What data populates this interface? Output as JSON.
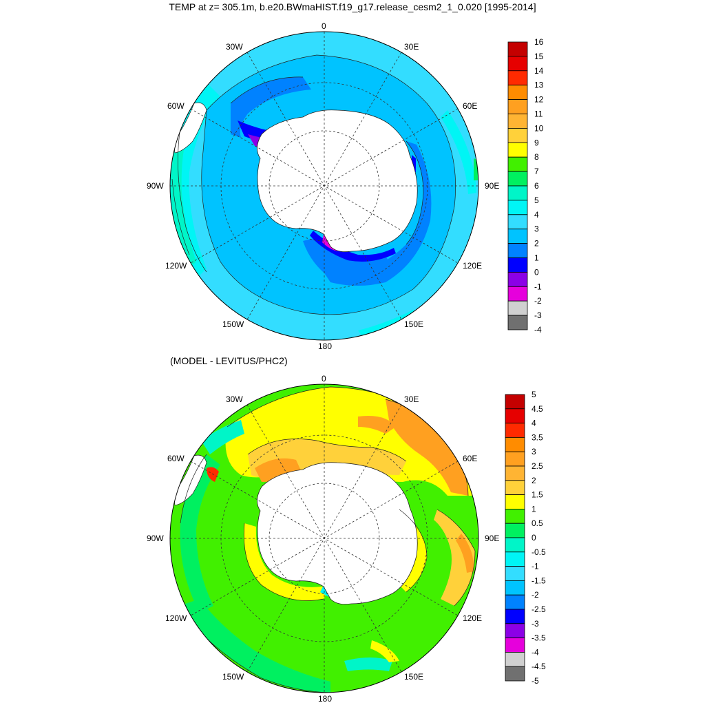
{
  "title": "TEMP at z= 305.1m, b.e20.BWmaHIST.f19_g17.release_cesm2_1_0.020 [1995-2014]",
  "bottom_title": "(MODEL - LEVITUS/PHC2)",
  "longitude_labels": [
    "0",
    "30E",
    "60E",
    "90E",
    "120E",
    "150E",
    "180",
    "150W",
    "120W",
    "90W",
    "60W",
    "30W"
  ],
  "top_colorbar": {
    "labels": [
      "16",
      "15",
      "14",
      "13",
      "12",
      "11",
      "10",
      "9",
      "8",
      "7",
      "6",
      "5",
      "4",
      "3",
      "2",
      "1",
      "0",
      "-1",
      "-2",
      "-3",
      "-4"
    ],
    "colors": [
      "#c40000",
      "#e60000",
      "#ff2a00",
      "#ff8c00",
      "#ffa020",
      "#ffb433",
      "#ffd13a",
      "#ffff00",
      "#41f000",
      "#00f060",
      "#00f5c8",
      "#00f5f5",
      "#33ddff",
      "#00c3ff",
      "#0082ff",
      "#0000ff",
      "#8b00e6",
      "#e600dc",
      "#d0d0d0",
      "#707070"
    ]
  },
  "bottom_colorbar": {
    "labels": [
      "5",
      "4.5",
      "4",
      "3.5",
      "3",
      "2.5",
      "2",
      "1.5",
      "1",
      "0.5",
      "0",
      "-0.5",
      "-1",
      "-1.5",
      "-2",
      "-2.5",
      "-3",
      "-3.5",
      "-4",
      "-4.5",
      "-5"
    ],
    "colors": [
      "#c40000",
      "#e60000",
      "#ff2a00",
      "#ff8c00",
      "#ffa020",
      "#ffb433",
      "#ffd13a",
      "#ffff00",
      "#41f000",
      "#00f060",
      "#00f5c8",
      "#00f5f5",
      "#33ddff",
      "#00c3ff",
      "#0082ff",
      "#0000ff",
      "#8b00e6",
      "#e600dc",
      "#d0d0d0",
      "#707070"
    ]
  }
}
